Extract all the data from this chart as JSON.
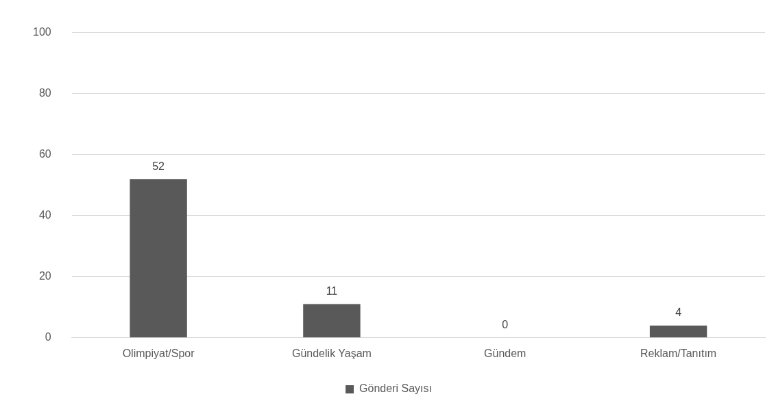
{
  "chart_data": {
    "type": "bar",
    "categories": [
      "Olimpiyat/Spor",
      "Gündelik Yaşam",
      "Gündem",
      "Reklam/Tanıtım"
    ],
    "series": [
      {
        "name": "Gönderi Sayısı",
        "color": "#595959",
        "values": [
          52,
          11,
          0,
          4
        ]
      }
    ],
    "ylim": [
      0,
      100
    ],
    "yticks": [
      0,
      20,
      40,
      60,
      80,
      100
    ],
    "grid": "y",
    "legend": "bottom",
    "data_labels": true
  }
}
